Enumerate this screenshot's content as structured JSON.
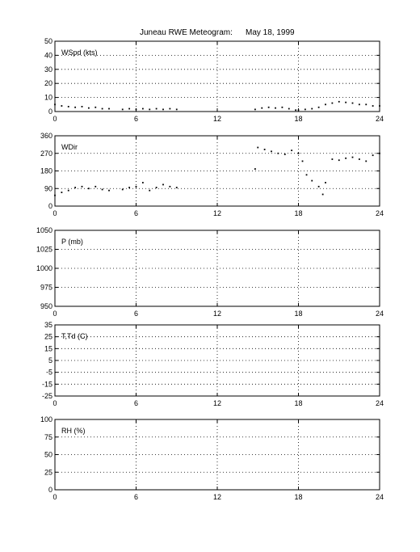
{
  "header": {
    "station": "Juneau RWE Meteogram:",
    "date": "May 18, 1999"
  },
  "chart_data": [
    {
      "type": "scatter",
      "label": "WSpd (kts)",
      "xlim": [
        0,
        24
      ],
      "ylim": [
        0,
        50
      ],
      "xticks": [
        "0",
        "6",
        "12",
        "18",
        "24"
      ],
      "yticks": [
        "0",
        "10",
        "20",
        "30",
        "40",
        "50"
      ],
      "grid": true,
      "series": [
        {
          "x": [
            0.0,
            0.5,
            1.0,
            1.5,
            2.0,
            2.5,
            3.0,
            3.5,
            4.0,
            5.0,
            5.5,
            6.0,
            6.5,
            7.0,
            7.5,
            8.0,
            8.5,
            9.0,
            14.8,
            15.3,
            15.8,
            16.3,
            16.8,
            17.3,
            17.8,
            18.0,
            18.5,
            19.0,
            19.5,
            20.0,
            20.5,
            21.0,
            21.5,
            22.0,
            22.5,
            23.0,
            23.5,
            24.0
          ],
          "y": [
            5,
            4,
            3.5,
            3,
            3.5,
            2.5,
            3,
            2,
            2,
            1.5,
            2,
            1.5,
            2,
            1.5,
            2,
            1.5,
            2,
            1.5,
            1.5,
            2.5,
            3,
            2.5,
            3,
            2,
            1,
            1,
            1.5,
            2,
            3,
            5,
            6,
            7,
            6.5,
            6,
            5,
            5,
            4,
            4
          ]
        }
      ]
    },
    {
      "type": "scatter",
      "label": "WDir",
      "xlim": [
        0,
        24
      ],
      "ylim": [
        0,
        360
      ],
      "xticks": [
        "0",
        "6",
        "12",
        "18",
        "24"
      ],
      "yticks": [
        "0",
        "90",
        "180",
        "270",
        "360"
      ],
      "grid": true,
      "series": [
        {
          "x": [
            0.0,
            0.5,
            1.0,
            1.5,
            2.0,
            2.5,
            3.0,
            3.5,
            4.0,
            5.0,
            5.5,
            6.0,
            6.5,
            7.0,
            7.5,
            8.0,
            8.5,
            9.0,
            14.8,
            15.0,
            15.5,
            16.0,
            16.5,
            17.0,
            17.5,
            18.0,
            18.3,
            18.6,
            19.0,
            19.5,
            19.8,
            20.0,
            20.5,
            21.0,
            21.5,
            22.0,
            22.5,
            23.0,
            23.5,
            24.0
          ],
          "y": [
            55,
            70,
            80,
            95,
            100,
            90,
            100,
            85,
            80,
            85,
            95,
            100,
            120,
            80,
            95,
            110,
            100,
            95,
            190,
            300,
            290,
            280,
            270,
            265,
            285,
            270,
            230,
            160,
            130,
            100,
            60,
            120,
            240,
            235,
            245,
            250,
            240,
            230,
            260,
            270
          ]
        }
      ]
    },
    {
      "type": "scatter",
      "label": "P (mb)",
      "xlim": [
        0,
        24
      ],
      "ylim": [
        950,
        1050
      ],
      "xticks": [
        "0",
        "6",
        "12",
        "18",
        "24"
      ],
      "yticks": [
        "950",
        "975",
        "1000",
        "1025",
        "1050"
      ],
      "grid": true,
      "series": []
    },
    {
      "type": "scatter",
      "label": "T,Td (C)",
      "xlim": [
        0,
        24
      ],
      "ylim": [
        -25,
        35
      ],
      "xticks": [
        "0",
        "6",
        "12",
        "18",
        "24"
      ],
      "yticks": [
        "-25",
        "-15",
        "-5",
        "5",
        "15",
        "25",
        "35"
      ],
      "grid": true,
      "series": []
    },
    {
      "type": "scatter",
      "label": "RH (%)",
      "xlim": [
        0,
        24
      ],
      "ylim": [
        0,
        100
      ],
      "xticks": [
        "0",
        "6",
        "12",
        "18",
        "24"
      ],
      "yticks": [
        "0",
        "25",
        "50",
        "75",
        "100"
      ],
      "grid": true,
      "series": []
    }
  ]
}
